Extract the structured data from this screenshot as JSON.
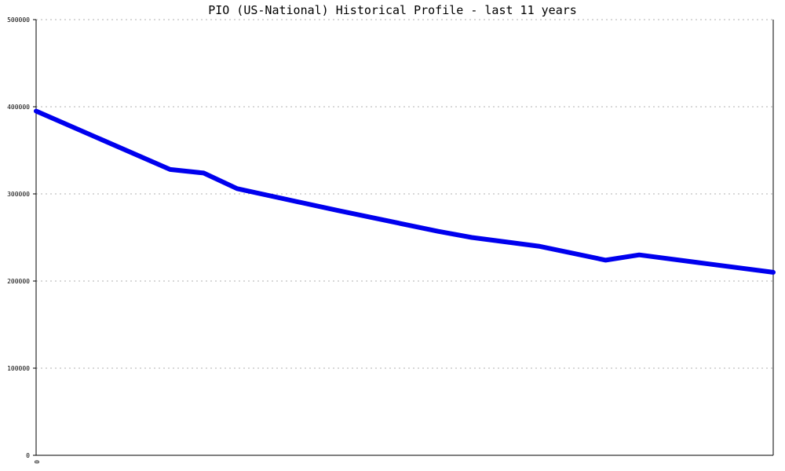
{
  "chart_data": {
    "type": "line",
    "title": "PIO (US-National) Historical Profile - last 11 years",
    "xlabel": "",
    "ylabel": "",
    "ylim": [
      0,
      500000
    ],
    "yticks": [
      0,
      100000,
      200000,
      300000,
      400000,
      500000
    ],
    "ytick_labels": [
      "0",
      "100000",
      "200000",
      "300000",
      "400000",
      "500000"
    ],
    "xtick_labels": [
      "0"
    ],
    "grid": true,
    "series_color": "#0000ee",
    "x": [
      0,
      4,
      5,
      6,
      9,
      12,
      13,
      15,
      17,
      18,
      20,
      22
    ],
    "xlim": [
      0,
      22
    ],
    "series": [
      {
        "values": [
          395000,
          328000,
          324000,
          306000,
          281000,
          257000,
          250000,
          240000,
          224000,
          230000,
          220000,
          210000
        ]
      }
    ]
  }
}
